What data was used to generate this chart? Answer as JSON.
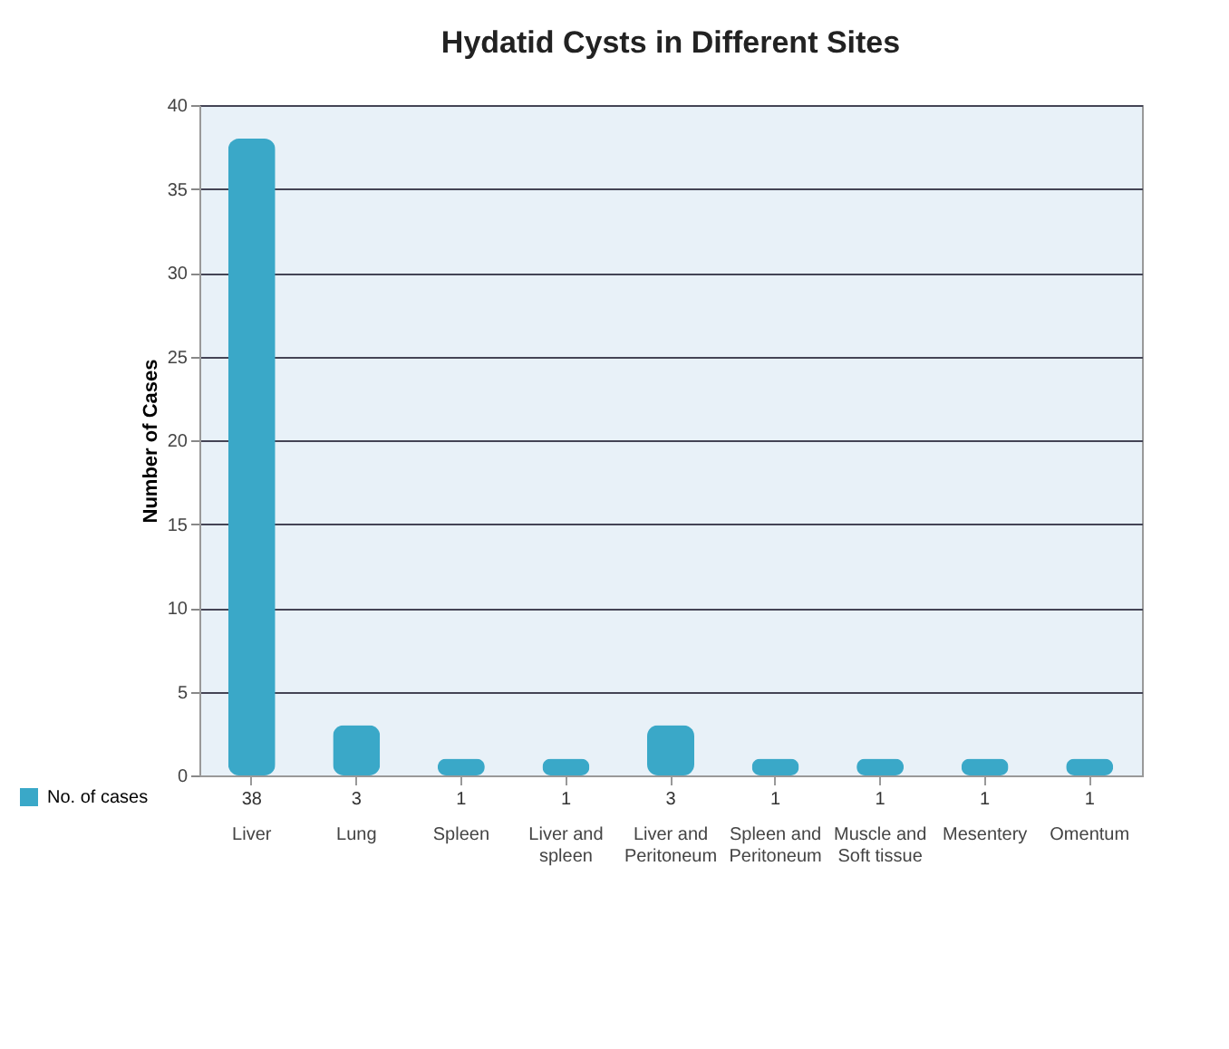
{
  "chart_data": {
    "type": "bar",
    "title": "Hydatid Cysts in Different Sites",
    "ylabel": "Number of Cases",
    "categories": [
      "Liver",
      "Lung",
      "Spleen",
      "Liver and spleen",
      "Liver and Peritoneum",
      "Spleen and Peritoneum",
      "Muscle and Soft tissue",
      "Mesentery",
      "Omentum"
    ],
    "series": [
      {
        "name": "No. of cases",
        "color": "#3aa8c8",
        "values": [
          38,
          3,
          1,
          1,
          3,
          1,
          1,
          1,
          1
        ]
      }
    ],
    "ylim": [
      0,
      40
    ],
    "yticks": [
      0,
      5,
      10,
      15,
      20,
      25,
      30,
      35,
      40
    ],
    "grid": "y",
    "data_labels": true,
    "legend": "bottom left"
  }
}
